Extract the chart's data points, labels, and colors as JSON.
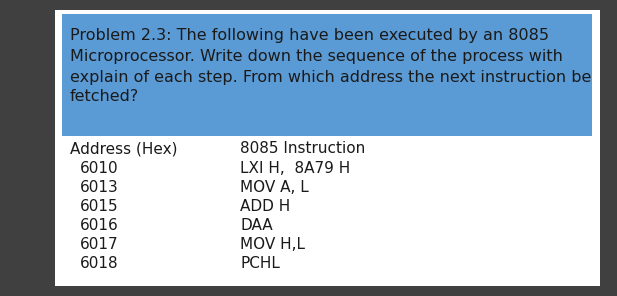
{
  "problem_text_lines": [
    "Problem 2.3: The following have been executed by an 8085",
    "Microprocessor. Write down the sequence of the process with",
    "explain of each step. From which address the next instruction be",
    "fetched?"
  ],
  "header_address": "Address (Hex)",
  "header_instruction": "8085 Instruction",
  "table_rows": [
    [
      "6010",
      "LXI H,  8A79 H"
    ],
    [
      "6013",
      "MOV A, L"
    ],
    [
      "6015",
      "ADD H"
    ],
    [
      "6016",
      "DAA"
    ],
    [
      "6017",
      "MOV H,L"
    ],
    [
      "6018",
      "PCHL"
    ]
  ],
  "blue_bg_color": "#5B9BD5",
  "white_bg_color": "#FFFFFF",
  "dark_bg_color": "#404040",
  "text_color_dark": "#1a1a1a",
  "problem_fontsize": 11.5,
  "header_fontsize": 11,
  "table_fontsize": 11,
  "fig_width": 6.17,
  "fig_height": 2.96,
  "dpi": 100
}
